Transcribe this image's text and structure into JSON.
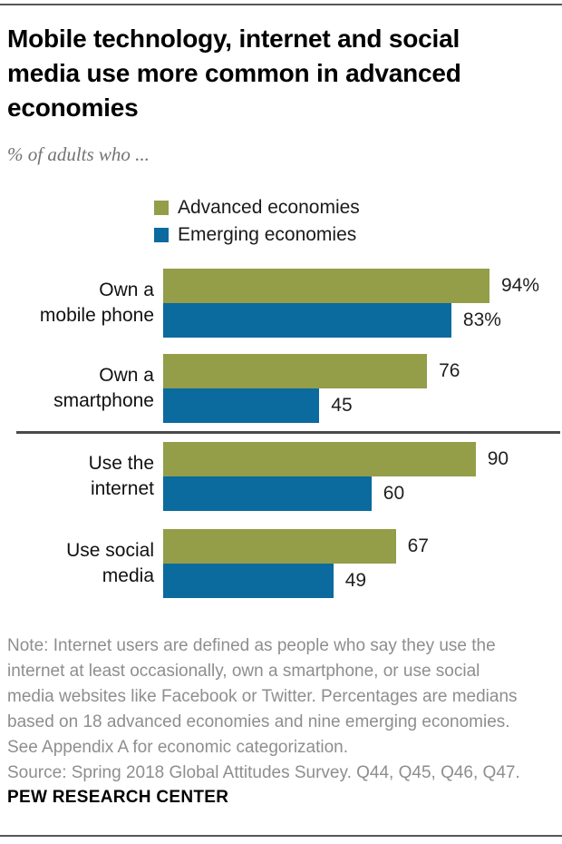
{
  "header": {
    "title": "Mobile technology, internet and social media use more common in advanced economies",
    "title_lines": [
      "Mobile technology, internet and social",
      "media use more common in advanced",
      "economies"
    ],
    "subtitle": "% of adults who ..."
  },
  "legend": [
    {
      "label": "Advanced economies",
      "color": "#949d48"
    },
    {
      "label": "Emerging economies",
      "color": "#0b6a9e"
    }
  ],
  "chart_data": {
    "type": "bar",
    "orientation": "horizontal",
    "title": "Mobile technology, internet and social media use more common in advanced economies",
    "xlabel": "% of adults",
    "xlim": [
      0,
      100
    ],
    "grid": false,
    "legend_position": "top",
    "categories": [
      "Own a mobile phone",
      "Own a smartphone",
      "Use the internet",
      "Use social media"
    ],
    "category_lines": [
      [
        "Own a",
        "mobile phone"
      ],
      [
        "Own a",
        "smartphone"
      ],
      [
        "Use the",
        "internet"
      ],
      [
        "Use social",
        "media"
      ]
    ],
    "series": [
      {
        "name": "Advanced economies",
        "color": "#949d48",
        "values": [
          94,
          76,
          90,
          67
        ]
      },
      {
        "name": "Emerging economies",
        "color": "#0b6a9e",
        "values": [
          83,
          45,
          60,
          49
        ]
      }
    ],
    "value_labels": [
      [
        "94%",
        "83%"
      ],
      [
        "76",
        "45"
      ],
      [
        "90",
        "60"
      ],
      [
        "67",
        "49"
      ]
    ],
    "separator_after_category_index": 1
  },
  "footer": {
    "note_lines": [
      "Note: Internet users are defined as people who say they use the",
      "internet at least occasionally, own a smartphone, or use social",
      "media websites like Facebook or Twitter. Percentages are medians",
      "based on 18 advanced economies and nine emerging economies.",
      "See Appendix A for economic categorization.",
      "Source: Spring 2018 Global Attitudes Survey. Q44, Q45, Q46, Q47."
    ],
    "brand": "PEW RESEARCH CENTER"
  }
}
